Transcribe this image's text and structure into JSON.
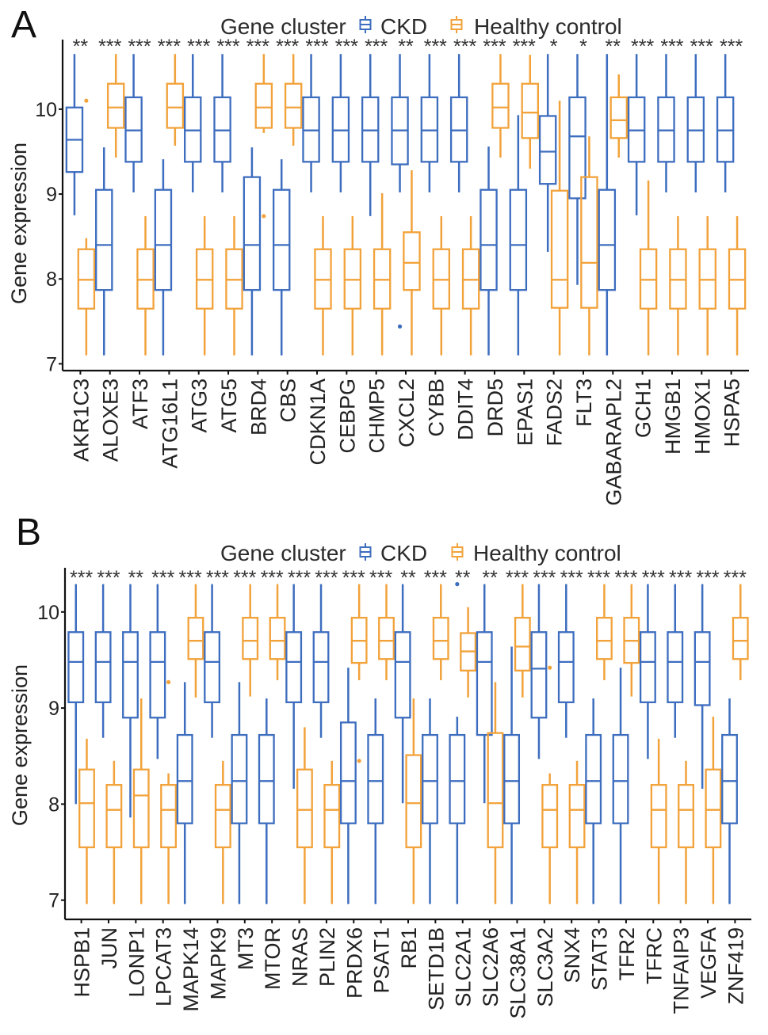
{
  "chart_data": [
    {
      "panel_label": "A",
      "type": "box",
      "title": "",
      "xlabel": "",
      "ylabel": "Gene expression",
      "ylim": [
        6.92,
        10.82
      ],
      "yticks": [
        7,
        8,
        9,
        10
      ],
      "grid": false,
      "legend": {
        "title": "Gene cluster",
        "position": "top",
        "entries": [
          {
            "name": "CKD",
            "color": "#3d6dbf"
          },
          {
            "name": "Healthy control",
            "color": "#f2a23a"
          }
        ]
      },
      "stat_order": [
        "min",
        "q1",
        "median",
        "q3",
        "max"
      ],
      "categories": [
        "AKR1C3",
        "ALOXE3",
        "ATF3",
        "ATG16L1",
        "ATG3",
        "ATG5",
        "BRD4",
        "CBS",
        "CDKN1A",
        "CEBPG",
        "CHMP5",
        "CXCL2",
        "CYBB",
        "DDIT4",
        "DRD5",
        "EPAS1",
        "FADS2",
        "FLT3",
        "GABARAPL2",
        "GCH1",
        "HMGB1",
        "HMOX1",
        "HSPA5"
      ],
      "significance": [
        "**",
        "***",
        "***",
        "***",
        "***",
        "***",
        "***",
        "***",
        "***",
        "***",
        "***",
        "**",
        "***",
        "***",
        "***",
        "***",
        "*",
        "*",
        "**",
        "***",
        "***",
        "***",
        "***"
      ],
      "series": [
        {
          "name": "CKD",
          "color": "#3d6dbf",
          "boxes": [
            [
              8.75,
              9.26,
              9.64,
              10.02,
              10.65
            ],
            [
              7.1,
              7.87,
              8.4,
              9.05,
              9.55
            ],
            [
              9.02,
              9.38,
              9.75,
              10.14,
              10.65
            ],
            [
              7.1,
              7.87,
              8.4,
              9.05,
              9.41
            ],
            [
              9.02,
              9.38,
              9.75,
              10.14,
              10.65
            ],
            [
              9.02,
              9.38,
              9.75,
              10.14,
              10.65
            ],
            [
              7.1,
              7.87,
              8.4,
              9.2,
              9.55
            ],
            [
              7.1,
              7.87,
              8.4,
              9.05,
              9.41
            ],
            [
              9.02,
              9.38,
              9.75,
              10.14,
              10.65
            ],
            [
              9.02,
              9.38,
              9.75,
              10.14,
              10.65
            ],
            [
              8.74,
              9.38,
              9.75,
              10.14,
              10.65
            ],
            [
              9.02,
              9.35,
              9.75,
              10.14,
              10.65
            ],
            [
              9.02,
              9.38,
              9.75,
              10.14,
              10.65
            ],
            [
              9.02,
              9.38,
              9.75,
              10.14,
              10.65
            ],
            [
              7.1,
              7.87,
              8.4,
              9.05,
              9.56
            ],
            [
              7.1,
              7.87,
              8.4,
              9.05,
              9.93
            ],
            [
              8.32,
              9.12,
              9.5,
              9.92,
              10.65
            ],
            [
              7.93,
              8.95,
              9.68,
              10.14,
              10.65
            ],
            [
              7.1,
              7.87,
              8.4,
              9.05,
              10.65
            ],
            [
              8.75,
              9.38,
              9.75,
              10.14,
              10.65
            ],
            [
              9.02,
              9.38,
              9.75,
              10.14,
              10.65
            ],
            [
              9.02,
              9.38,
              9.75,
              10.14,
              10.65
            ],
            [
              9.02,
              9.38,
              9.75,
              10.14,
              10.65
            ]
          ],
          "outliers": [
            [],
            [],
            [],
            [],
            [],
            [],
            [],
            [],
            [],
            [],
            [],
            [
              7.44
            ],
            [],
            [],
            [],
            [],
            [],
            [],
            [],
            [],
            [],
            [],
            []
          ]
        },
        {
          "name": "Healthy control",
          "color": "#f2a23a",
          "boxes": [
            [
              7.1,
              7.65,
              7.99,
              8.35,
              8.48
            ],
            [
              9.43,
              9.78,
              10.02,
              10.3,
              10.65
            ],
            [
              7.1,
              7.65,
              7.99,
              8.35,
              8.74
            ],
            [
              9.57,
              9.78,
              10.02,
              10.3,
              10.65
            ],
            [
              7.1,
              7.65,
              7.99,
              8.35,
              8.74
            ],
            [
              7.1,
              7.65,
              7.99,
              8.35,
              8.74
            ],
            [
              9.72,
              9.78,
              10.02,
              10.3,
              10.65
            ],
            [
              9.57,
              9.78,
              10.02,
              10.3,
              10.65
            ],
            [
              7.1,
              7.65,
              7.99,
              8.35,
              8.74
            ],
            [
              7.1,
              7.65,
              7.99,
              8.35,
              8.74
            ],
            [
              7.1,
              7.65,
              7.99,
              8.35,
              9.01
            ],
            [
              7.1,
              7.87,
              8.19,
              8.55,
              9.28
            ],
            [
              7.1,
              7.65,
              7.99,
              8.35,
              8.74
            ],
            [
              7.1,
              7.65,
              7.99,
              8.35,
              8.74
            ],
            [
              9.43,
              9.78,
              10.02,
              10.3,
              10.65
            ],
            [
              9.3,
              9.66,
              9.96,
              10.3,
              10.64
            ],
            [
              7.1,
              7.66,
              7.99,
              9.04,
              10.1
            ],
            [
              7.1,
              7.66,
              8.19,
              9.2,
              9.68
            ],
            [
              9.43,
              9.66,
              9.87,
              10.14,
              10.41
            ],
            [
              7.1,
              7.65,
              7.99,
              8.35,
              9.16
            ],
            [
              7.1,
              7.65,
              7.99,
              8.35,
              8.74
            ],
            [
              7.1,
              7.65,
              7.99,
              8.35,
              8.74
            ],
            [
              7.1,
              7.65,
              7.99,
              8.35,
              8.74
            ]
          ],
          "outliers": [
            [
              10.1
            ],
            [],
            [],
            [],
            [],
            [],
            [
              8.74
            ],
            [],
            [],
            [],
            [],
            [],
            [],
            [],
            [],
            [],
            [],
            [],
            [],
            [],
            [],
            [],
            []
          ]
        }
      ]
    },
    {
      "panel_label": "B",
      "type": "box",
      "title": "",
      "xlabel": "",
      "ylabel": "Gene expression",
      "ylim": [
        6.8,
        10.46
      ],
      "yticks": [
        7,
        8,
        9,
        10
      ],
      "grid": false,
      "legend": {
        "title": "Gene cluster",
        "position": "top",
        "entries": [
          {
            "name": "CKD",
            "color": "#3d6dbf"
          },
          {
            "name": "Healthy control",
            "color": "#f2a23a"
          }
        ]
      },
      "stat_order": [
        "min",
        "q1",
        "median",
        "q3",
        "max"
      ],
      "categories": [
        "HSPB1",
        "JUN",
        "LONP1",
        "LPCAT3",
        "MAPK14",
        "MAPK9",
        "MT3",
        "MTOR",
        "NRAS",
        "PLIN2",
        "PRDX6",
        "PSAT1",
        "RB1",
        "SETD1B",
        "SLC2A1",
        "SLC2A6",
        "SLC38A1",
        "SLC3A2",
        "SNX4",
        "STAT3",
        "TFR2",
        "TFRC",
        "TNFAIP3",
        "VEGFA",
        "ZNF419"
      ],
      "significance": [
        "***",
        "***",
        "**",
        "***",
        "***",
        "***",
        "***",
        "***",
        "***",
        "***",
        "***",
        "***",
        "**",
        "***",
        "**",
        "**",
        "***",
        "***",
        "***",
        "***",
        "***",
        "***",
        "***",
        "***",
        "***"
      ],
      "series": [
        {
          "name": "CKD",
          "color": "#3d6dbf",
          "boxes": [
            [
              8.0,
              9.06,
              9.48,
              9.79,
              10.29
            ],
            [
              8.69,
              9.06,
              9.48,
              9.79,
              10.29
            ],
            [
              7.86,
              8.9,
              9.48,
              9.79,
              10.29
            ],
            [
              8.47,
              8.9,
              9.48,
              9.79,
              10.29
            ],
            [
              6.96,
              7.8,
              8.24,
              8.72,
              9.27
            ],
            [
              8.69,
              9.06,
              9.48,
              9.79,
              10.29
            ],
            [
              6.96,
              7.8,
              8.24,
              8.72,
              9.27
            ],
            [
              6.96,
              7.8,
              8.24,
              8.72,
              9.1
            ],
            [
              8.16,
              9.06,
              9.48,
              9.79,
              10.29
            ],
            [
              8.69,
              9.06,
              9.48,
              9.79,
              10.29
            ],
            [
              6.96,
              7.8,
              8.24,
              8.85,
              9.42
            ],
            [
              6.96,
              7.8,
              8.24,
              8.72,
              9.1
            ],
            [
              8.01,
              8.9,
              9.48,
              9.79,
              10.29
            ],
            [
              6.96,
              7.8,
              8.24,
              8.72,
              9.1
            ],
            [
              6.96,
              7.8,
              8.24,
              8.72,
              8.91
            ],
            [
              8.01,
              8.72,
              9.48,
              9.79,
              10.29
            ],
            [
              6.96,
              7.8,
              8.24,
              8.72,
              9.64
            ],
            [
              8.47,
              8.9,
              9.41,
              9.79,
              10.29
            ],
            [
              8.69,
              9.06,
              9.48,
              9.79,
              10.29
            ],
            [
              6.96,
              7.8,
              8.24,
              8.72,
              9.1
            ],
            [
              6.96,
              7.8,
              8.24,
              8.72,
              9.42
            ],
            [
              8.47,
              9.06,
              9.48,
              9.79,
              10.29
            ],
            [
              8.69,
              9.06,
              9.48,
              9.79,
              10.29
            ],
            [
              8.16,
              9.03,
              9.48,
              9.79,
              10.29
            ],
            [
              6.96,
              7.8,
              8.24,
              8.72,
              9.1
            ]
          ],
          "outliers": [
            [],
            [],
            [],
            [],
            [],
            [],
            [],
            [],
            [],
            [],
            [],
            [],
            [],
            [],
            [
              10.29
            ],
            [],
            [],
            [],
            [],
            [],
            [],
            [],
            [],
            [],
            []
          ]
        },
        {
          "name": "Healthy control",
          "color": "#f2a23a",
          "boxes": [
            [
              6.96,
              7.55,
              8.01,
              8.36,
              8.68
            ],
            [
              6.96,
              7.55,
              7.94,
              8.2,
              8.45
            ],
            [
              6.96,
              7.55,
              8.09,
              8.36,
              9.1
            ],
            [
              6.96,
              7.55,
              7.94,
              8.2,
              8.32
            ],
            [
              9.11,
              9.51,
              9.7,
              9.94,
              10.29
            ],
            [
              6.96,
              7.55,
              7.94,
              8.2,
              8.45
            ],
            [
              9.12,
              9.51,
              9.7,
              9.94,
              10.29
            ],
            [
              9.29,
              9.51,
              9.7,
              9.94,
              10.29
            ],
            [
              6.96,
              7.55,
              7.94,
              8.36,
              8.8
            ],
            [
              6.96,
              7.55,
              7.94,
              8.2,
              8.45
            ],
            [
              9.29,
              9.47,
              9.7,
              9.94,
              10.29
            ],
            [
              9.29,
              9.51,
              9.7,
              9.94,
              10.29
            ],
            [
              6.96,
              7.55,
              8.01,
              8.51,
              9.1
            ],
            [
              9.29,
              9.51,
              9.7,
              9.94,
              10.29
            ],
            [
              9.11,
              9.39,
              9.59,
              9.78,
              10.05
            ],
            [
              6.96,
              7.55,
              8.01,
              8.74,
              9.27
            ],
            [
              9.11,
              9.39,
              9.64,
              9.94,
              10.29
            ],
            [
              6.96,
              7.55,
              7.94,
              8.2,
              8.32
            ],
            [
              6.96,
              7.55,
              7.94,
              8.2,
              8.45
            ],
            [
              9.29,
              9.51,
              9.7,
              9.94,
              10.29
            ],
            [
              9.12,
              9.47,
              9.7,
              9.94,
              10.29
            ],
            [
              6.96,
              7.55,
              7.94,
              8.2,
              8.68
            ],
            [
              6.96,
              7.55,
              7.94,
              8.2,
              8.45
            ],
            [
              6.96,
              7.55,
              7.94,
              8.36,
              8.91
            ],
            [
              9.29,
              9.51,
              9.7,
              9.94,
              10.29
            ]
          ],
          "outliers": [
            [],
            [],
            [],
            [
              9.27
            ],
            [],
            [],
            [],
            [],
            [],
            [],
            [
              8.45
            ],
            [],
            [],
            [],
            [],
            [],
            [],
            [
              9.42
            ],
            [],
            [],
            [],
            [],
            [],
            [],
            []
          ]
        }
      ]
    }
  ]
}
